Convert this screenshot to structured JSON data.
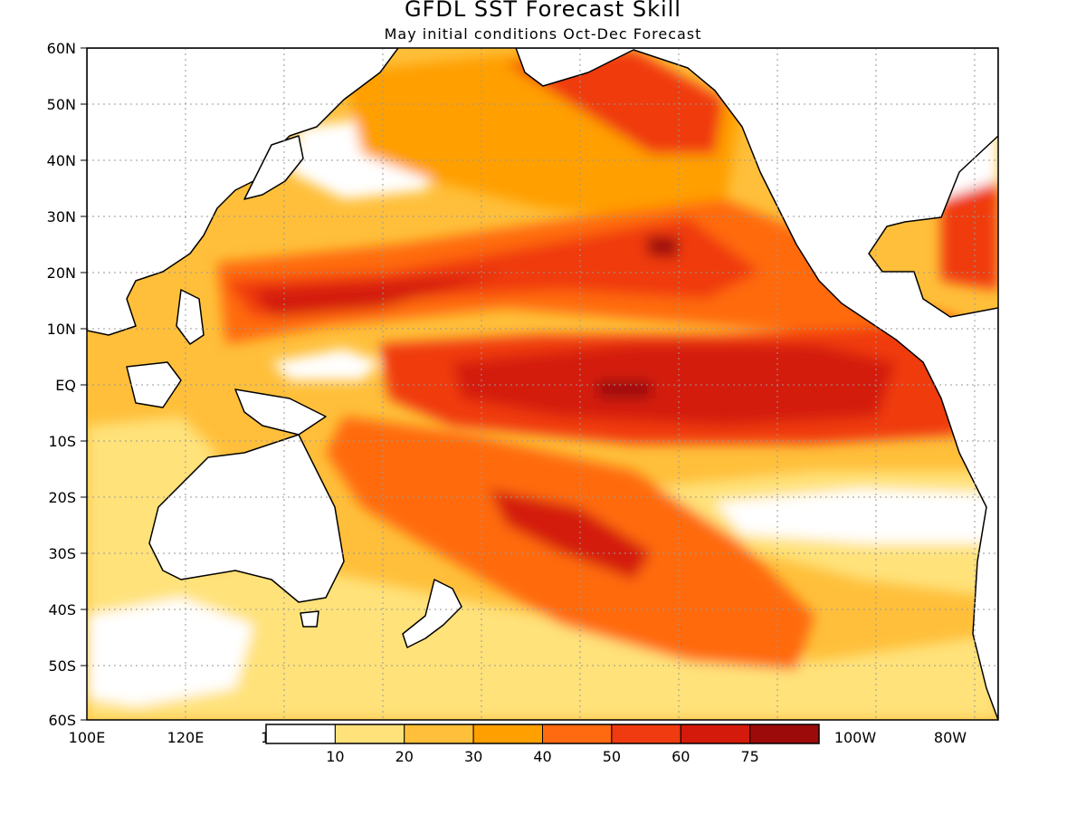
{
  "header": {
    "title": "GFDL SST Forecast Skill",
    "subtitle": "May initial conditions  Oct-Dec Forecast"
  },
  "map": {
    "projection": "lat-lon",
    "lon_range": [
      100,
      285
    ],
    "lat_range": [
      -60,
      60
    ],
    "grid": "dotted",
    "lat_ticks": [
      "60N",
      "50N",
      "40N",
      "30N",
      "20N",
      "10N",
      "EQ",
      "10S",
      "20S",
      "30S",
      "40S",
      "50S",
      "60S"
    ],
    "lon_ticks_left": [
      "100E",
      "120E",
      "1"
    ],
    "lon_ticks_right": [
      "100W",
      "80W"
    ]
  },
  "colorbar": {
    "levels": [
      "10",
      "20",
      "30",
      "40",
      "50",
      "60",
      "75"
    ],
    "colors": [
      "#ffffff",
      "#ffe27a",
      "#ffbf3a",
      "#ff9f00",
      "#ff6a10",
      "#f03a10",
      "#d41a0a",
      "#9c0a0a"
    ]
  }
}
